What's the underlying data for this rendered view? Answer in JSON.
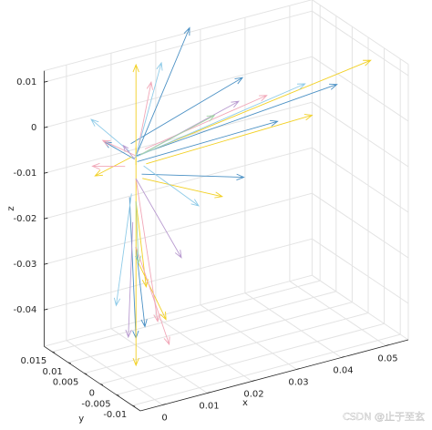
{
  "chart_data": {
    "type": "quiver3",
    "xlabel": "x",
    "ylabel": "y",
    "zlabel": "z",
    "xlim": [
      -0.005,
      0.055
    ],
    "ylim": [
      -0.0125,
      0.0175
    ],
    "zlim": [
      -0.048,
      0.0125
    ],
    "xticks": [
      0,
      0.01,
      0.02,
      0.03,
      0.04,
      0.05
    ],
    "yticks": [
      -0.01,
      -0.005,
      0,
      0.005,
      0.01,
      0.015
    ],
    "zticks": [
      -0.04,
      -0.03,
      -0.02,
      -0.01,
      0,
      0.01
    ],
    "grid": true,
    "series": [
      {
        "color": "#4a90c4",
        "x": [
          0.003,
          0.004,
          0.003,
          0.003,
          0.002,
          0.005,
          0.003,
          0.004
        ],
        "y": [
          0,
          0.001,
          0,
          0.002,
          -0.001,
          0.001,
          0,
          0.003
        ],
        "z": [
          0,
          -0.002,
          0,
          -0.01,
          0,
          -0.005,
          -0.02,
          0.001
        ],
        "u": [
          0.045,
          0.03,
          0.012,
          0,
          -0.004,
          0.02,
          0.002,
          0.025
        ],
        "v": [
          0,
          -0.002,
          0,
          -0.002,
          0.004,
          -0.004,
          0,
          0
        ],
        "w": [
          0.004,
          0.002,
          0.025,
          -0.03,
          0.003,
          -0.004,
          -0.018,
          0.008
        ]
      },
      {
        "color": "#f2d024",
        "x": [
          0.003,
          0.003,
          0.004,
          0.006,
          0.003,
          0.003,
          0.002,
          0.005
        ],
        "y": [
          0,
          0,
          0,
          0.001,
          0,
          -0.002,
          0,
          0.002
        ],
        "z": [
          -0.002,
          0.002,
          0,
          -0.003,
          -0.01,
          -0.004,
          0,
          -0.025
        ],
        "u": [
          0,
          0,
          0.053,
          0.035,
          0.003,
          0.015,
          -0.006,
          0.004
        ],
        "v": [
          0,
          0,
          0.002,
          -0.003,
          0.001,
          -0.004,
          0.003,
          -0.003
        ],
        "w": [
          0.022,
          -0.048,
          0.006,
          0.003,
          -0.02,
          -0.006,
          -0.004,
          -0.012
        ]
      },
      {
        "color": "#f1a7b8",
        "x": [
          0.003,
          0.003,
          0.004,
          0.003,
          0.005,
          0.002
        ],
        "y": [
          0,
          0,
          0.001,
          0,
          0,
          0.002
        ],
        "z": [
          0,
          -0.005,
          0,
          -0.02,
          0.001,
          -0.003
        ],
        "u": [
          -0.006,
          0.002,
          0.006,
          0.006,
          0.028,
          -0.003
        ],
        "v": [
          0.002,
          -0.004,
          0.004,
          -0.002,
          0.001,
          0.006
        ],
        "w": [
          0.004,
          -0.03,
          0.012,
          -0.022,
          0.004,
          -0.002
        ]
      },
      {
        "color": "#8fcbe8",
        "x": [
          0.003,
          0.003,
          0.002,
          0.004,
          0.003
        ],
        "y": [
          0,
          0.001,
          0,
          -0.001,
          0.002
        ],
        "z": [
          0,
          -0.001,
          -0.008,
          -0.002,
          0
        ],
        "u": [
          0.01,
          0.04,
          -0.002,
          0.008,
          -0.005
        ],
        "v": [
          0.006,
          0.002,
          0.002,
          -0.006,
          0.005
        ],
        "w": [
          0.015,
          0.005,
          -0.025,
          -0.008,
          0.006
        ]
      },
      {
        "color": "#b99bd0",
        "x": [
          0.003,
          0.004,
          0.003,
          0.002
        ],
        "y": [
          0,
          0,
          0.001,
          -0.001
        ],
        "z": [
          -0.005,
          0,
          -0.015,
          0
        ],
        "u": [
          0.008,
          0.022,
          -0.001,
          -0.004
        ],
        "v": [
          -0.003,
          0,
          0,
          -0.002
        ],
        "w": [
          -0.018,
          0.006,
          -0.025,
          0.005
        ]
      },
      {
        "color": "#a5d6a7",
        "x": [
          0.004,
          0.003
        ],
        "y": [
          0,
          0
        ],
        "z": [
          0,
          -0.01
        ],
        "u": [
          0.018,
          0.002
        ],
        "v": [
          0.002,
          0.002
        ],
        "w": [
          0.003,
          -0.015
        ]
      }
    ]
  },
  "watermark": "CSDN @止于至玄"
}
